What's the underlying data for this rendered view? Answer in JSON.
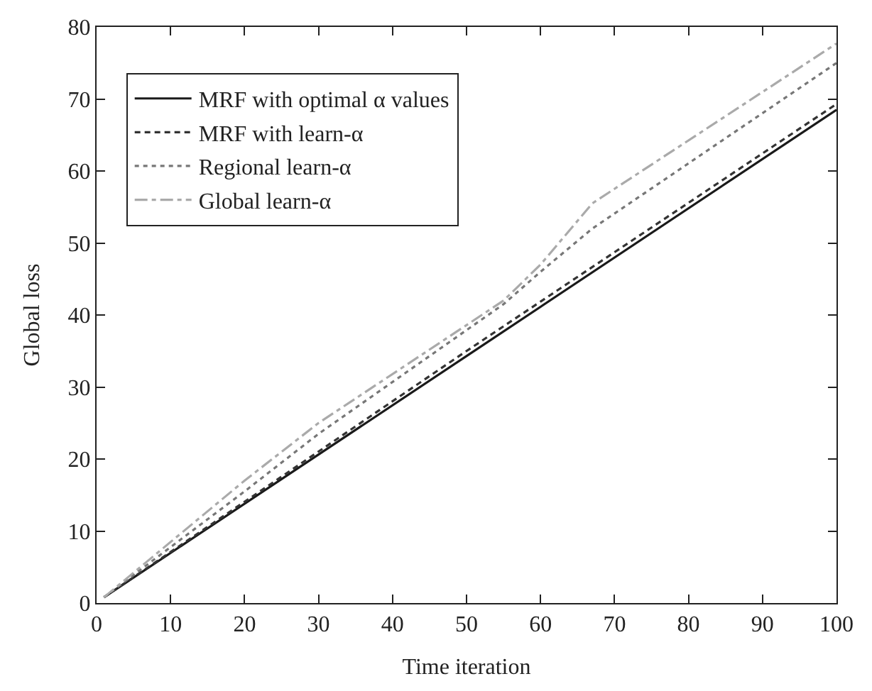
{
  "chart_data": {
    "type": "line",
    "xlabel": "Time iteration",
    "ylabel": "Global loss",
    "xlim": [
      0,
      100
    ],
    "ylim": [
      0,
      80
    ],
    "xticks": [
      0,
      10,
      20,
      30,
      40,
      50,
      60,
      70,
      80,
      90,
      100
    ],
    "yticks": [
      0,
      10,
      20,
      30,
      40,
      50,
      60,
      70,
      80
    ],
    "legend": "top left",
    "marker": "none",
    "series": [
      {
        "name": "MRF with optimal α values",
        "color": "#1a1a1a",
        "line_style": "solid",
        "x": [
          1,
          50,
          100
        ],
        "values": [
          0.8,
          34.3,
          68.5
        ]
      },
      {
        "name": "MRF with learn-α",
        "color": "#333333",
        "line_style": "dashed",
        "x": [
          1,
          50,
          100
        ],
        "values": [
          0.8,
          35,
          69.3
        ]
      },
      {
        "name": "Regional learn-α",
        "color": "#777777",
        "line_style": "dotted",
        "x": [
          1,
          20,
          30,
          55,
          60,
          67,
          100
        ],
        "values": [
          0.8,
          15.5,
          23.5,
          41.5,
          46,
          52,
          75
        ]
      },
      {
        "name": "Global learn-α",
        "color": "#aaaaaa",
        "line_style": "dashdot",
        "x": [
          1,
          20,
          30,
          55,
          60,
          67,
          100
        ],
        "values": [
          0.8,
          17,
          25,
          42,
          47,
          55.5,
          77.7
        ]
      }
    ]
  }
}
